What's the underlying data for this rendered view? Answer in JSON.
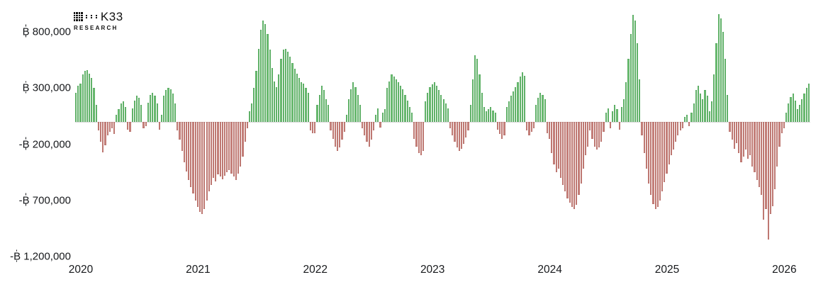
{
  "branding": {
    "logo_text": "K33",
    "logo_subtext": "RESEARCH",
    "logo_icon": "dot-matrix-icon"
  },
  "chart_data": {
    "type": "bar",
    "title": "",
    "xlabel": "",
    "ylabel": "",
    "unit": "BTC",
    "currency_symbol": "₿",
    "frequency": "weekly",
    "grid": false,
    "legend": false,
    "positive_color": "#6ebf73",
    "negative_color": "#c8847f",
    "zero_line_color": "#d9d9d9",
    "ylim": [
      -1250000,
      1020000
    ],
    "y_ticks": [
      {
        "value": 800000,
        "label": "₿ 800,000"
      },
      {
        "value": 300000,
        "label": "₿ 300,000"
      },
      {
        "value": -200000,
        "label": "-₿ 200,000"
      },
      {
        "value": -700000,
        "label": "-₿ 700,000"
      },
      {
        "value": -1200000,
        "label": "-₿ 1,200,000"
      }
    ],
    "x_ticks": [
      {
        "label": "2020",
        "index": 2
      },
      {
        "label": "2021",
        "index": 54
      },
      {
        "label": "2022",
        "index": 106
      },
      {
        "label": "2023",
        "index": 158
      },
      {
        "label": "2024",
        "index": 210
      },
      {
        "label": "2025",
        "index": 262
      },
      {
        "label": "2026",
        "index": 314
      }
    ],
    "values": [
      260000,
      320000,
      340000,
      420000,
      450000,
      460000,
      430000,
      390000,
      300000,
      150000,
      -80000,
      -180000,
      -270000,
      -210000,
      -120000,
      -90000,
      -60000,
      -110000,
      60000,
      110000,
      160000,
      180000,
      130000,
      -70000,
      -90000,
      120000,
      190000,
      230000,
      210000,
      150000,
      -60000,
      -40000,
      170000,
      240000,
      260000,
      230000,
      160000,
      -70000,
      60000,
      230000,
      280000,
      300000,
      290000,
      250000,
      160000,
      -80000,
      -160000,
      -260000,
      -360000,
      -440000,
      -520000,
      -580000,
      -640000,
      -700000,
      -760000,
      -800000,
      -820000,
      -780000,
      -700000,
      -620000,
      -560000,
      -500000,
      -530000,
      -470000,
      -490000,
      -510000,
      -480000,
      -450000,
      -430000,
      -460000,
      -490000,
      -520000,
      -460000,
      -400000,
      -310000,
      -180000,
      -60000,
      90000,
      160000,
      300000,
      450000,
      650000,
      820000,
      900000,
      870000,
      780000,
      640000,
      480000,
      360000,
      310000,
      420000,
      560000,
      640000,
      650000,
      620000,
      580000,
      520000,
      470000,
      430000,
      390000,
      350000,
      340000,
      300000,
      260000,
      -80000,
      -100000,
      -100000,
      150000,
      240000,
      320000,
      280000,
      200000,
      150000,
      -80000,
      -150000,
      -220000,
      -260000,
      -230000,
      -160000,
      -90000,
      60000,
      200000,
      290000,
      350000,
      310000,
      240000,
      150000,
      -60000,
      -120000,
      -180000,
      -220000,
      -160000,
      -80000,
      60000,
      120000,
      -50000,
      80000,
      110000,
      300000,
      360000,
      420000,
      400000,
      380000,
      350000,
      320000,
      290000,
      240000,
      190000,
      130000,
      80000,
      -150000,
      -220000,
      -280000,
      -300000,
      -260000,
      180000,
      260000,
      310000,
      330000,
      350000,
      320000,
      280000,
      240000,
      200000,
      160000,
      120000,
      -60000,
      -120000,
      -180000,
      -230000,
      -260000,
      -240000,
      -200000,
      -140000,
      -80000,
      150000,
      380000,
      590000,
      560000,
      420000,
      260000,
      130000,
      90000,
      110000,
      130000,
      100000,
      80000,
      -70000,
      -110000,
      -150000,
      -120000,
      130000,
      180000,
      230000,
      270000,
      310000,
      350000,
      400000,
      440000,
      410000,
      -80000,
      -120000,
      -90000,
      -60000,
      150000,
      210000,
      260000,
      240000,
      200000,
      -100000,
      -150000,
      -280000,
      -380000,
      -450000,
      -420000,
      -500000,
      -560000,
      -620000,
      -680000,
      -720000,
      -760000,
      -780000,
      -740000,
      -650000,
      -550000,
      -420000,
      -300000,
      -220000,
      -80000,
      -150000,
      -220000,
      -250000,
      -230000,
      -180000,
      -90000,
      80000,
      120000,
      -60000,
      90000,
      150000,
      110000,
      -70000,
      130000,
      200000,
      350000,
      560000,
      780000,
      950000,
      900000,
      700000,
      380000,
      -120000,
      -280000,
      -420000,
      -550000,
      -650000,
      -730000,
      -780000,
      -760000,
      -700000,
      -620000,
      -540000,
      -460000,
      -380000,
      -300000,
      -250000,
      -180000,
      -120000,
      -80000,
      -60000,
      40000,
      60000,
      -40000,
      80000,
      160000,
      280000,
      320000,
      250000,
      200000,
      280000,
      230000,
      90000,
      180000,
      420000,
      700000,
      960000,
      920000,
      800000,
      560000,
      240000,
      -90000,
      -160000,
      -240000,
      -190000,
      -280000,
      -360000,
      -310000,
      -250000,
      -330000,
      -300000,
      -400000,
      -450000,
      -520000,
      -580000,
      -650000,
      -870000,
      -780000,
      -1050000,
      -820000,
      -750000,
      -600000,
      -400000,
      -220000,
      -100000,
      -60000,
      80000,
      160000,
      220000,
      250000,
      190000,
      110000,
      150000,
      200000,
      250000,
      300000,
      340000
    ]
  }
}
